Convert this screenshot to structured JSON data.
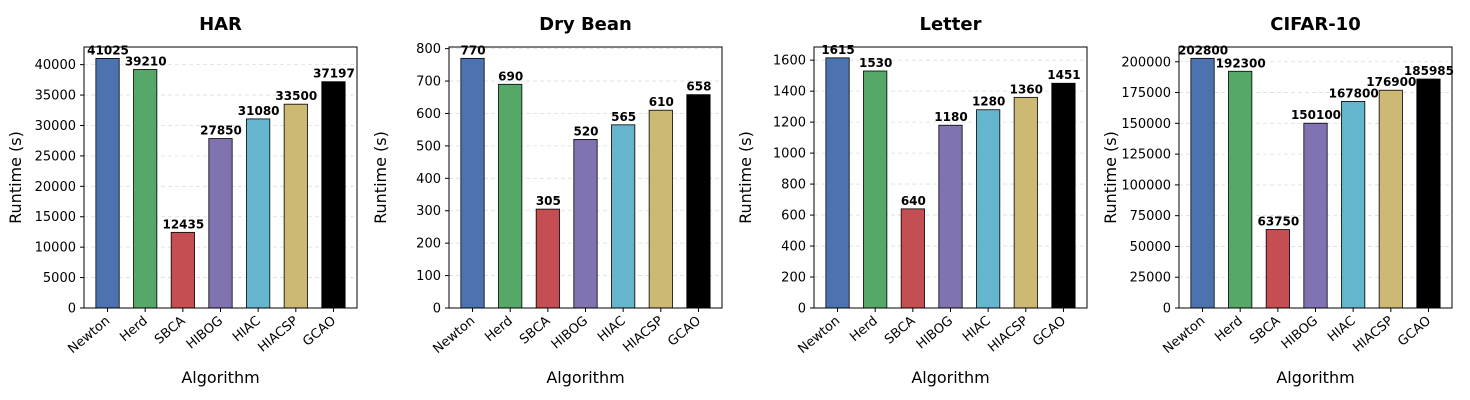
{
  "chart_data": [
    {
      "type": "bar",
      "title": "HAR",
      "xlabel": "Algorithm",
      "ylabel": "Runtime (s)",
      "categories": [
        "Newton",
        "Herd",
        "SBCA",
        "HIBOG",
        "HIAC",
        "HIACSP",
        "GCAO"
      ],
      "values": [
        41025,
        39210,
        12435,
        27850,
        31080,
        33500,
        37197
      ],
      "ylim": [
        0,
        42900
      ],
      "yticks": [
        0,
        5000,
        10000,
        15000,
        20000,
        25000,
        30000,
        35000,
        40000
      ],
      "grid": true
    },
    {
      "type": "bar",
      "title": "Dry Bean",
      "xlabel": "Algorithm",
      "ylabel": "Runtime (s)",
      "categories": [
        "Newton",
        "Herd",
        "SBCA",
        "HIBOG",
        "HIAC",
        "HIACSP",
        "GCAO"
      ],
      "values": [
        770,
        690,
        305,
        520,
        565,
        610,
        658
      ],
      "ylim": [
        0,
        805
      ],
      "yticks": [
        0,
        100,
        200,
        300,
        400,
        500,
        600,
        700,
        800
      ],
      "grid": true
    },
    {
      "type": "bar",
      "title": "Letter",
      "xlabel": "Algorithm",
      "ylabel": "Runtime (s)",
      "categories": [
        "Newton",
        "Herd",
        "SBCA",
        "HIBOG",
        "HIAC",
        "HIACSP",
        "GCAO"
      ],
      "values": [
        1615,
        1530,
        640,
        1180,
        1280,
        1360,
        1451
      ],
      "ylim": [
        0,
        1685
      ],
      "yticks": [
        0,
        200,
        400,
        600,
        800,
        1000,
        1200,
        1400,
        1600
      ],
      "grid": true
    },
    {
      "type": "bar",
      "title": "CIFAR-10",
      "xlabel": "Algorithm",
      "ylabel": "Runtime (s)",
      "categories": [
        "Newton",
        "Herd",
        "SBCA",
        "HIBOG",
        "HIAC",
        "HIACSP",
        "GCAO"
      ],
      "values": [
        202800,
        192300,
        63750,
        150100,
        167800,
        176900,
        185985
      ],
      "ylim": [
        0,
        212000
      ],
      "yticks": [
        0,
        25000,
        50000,
        75000,
        100000,
        125000,
        150000,
        175000,
        200000
      ],
      "grid": true
    }
  ],
  "colors": [
    "#4c72b0",
    "#55a868",
    "#c44e52",
    "#8172b2",
    "#64b5cd",
    "#ccb974",
    "#000000"
  ]
}
